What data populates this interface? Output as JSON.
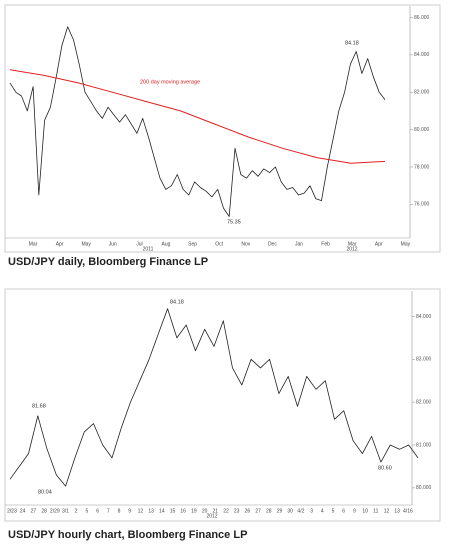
{
  "charts": [
    {
      "type": "line",
      "caption": "USD/JPY daily, Bloomberg Finance LP",
      "series": [
        {
          "name": "USD/JPY",
          "color": "#222222",
          "values": [
            82.5,
            82.0,
            81.8,
            81.0,
            82.3,
            76.5,
            80.5,
            81.2,
            82.8,
            84.5,
            85.5,
            84.8,
            83.5,
            82.0,
            81.5,
            81.0,
            80.6,
            81.2,
            80.8,
            80.4,
            80.8,
            80.3,
            79.8,
            80.6,
            79.6,
            78.5,
            77.4,
            76.8,
            77.0,
            77.6,
            76.8,
            76.5,
            77.2,
            76.9,
            76.7,
            76.4,
            76.8,
            75.8,
            75.35,
            79.0,
            77.6,
            77.4,
            77.8,
            77.5,
            77.9,
            77.7,
            78.0,
            77.2,
            76.8,
            76.9,
            76.5,
            76.6,
            77.0,
            76.3,
            76.2,
            78.0,
            79.5,
            81.0,
            82.0,
            83.5,
            84.18,
            83.0,
            83.8,
            82.8,
            82.0,
            81.6
          ]
        },
        {
          "name": "200 day moving average",
          "color": "#e02020",
          "values": [
            83.2,
            82.9,
            82.5,
            82.0,
            81.5,
            81.0,
            80.3,
            79.6,
            79.0,
            78.5,
            78.2,
            78.3
          ]
        }
      ],
      "x_labels": [
        "Mar",
        "Apr",
        "May",
        "Jun",
        "Jul",
        "Aug",
        "Sep",
        "Oct",
        "Nov",
        "Dec",
        "Jan",
        "Feb",
        "Mar",
        "Apr",
        "May"
      ],
      "year_labels": [
        "2011",
        "2012"
      ],
      "annotations": [
        "84.18",
        "75.35"
      ],
      "ylim": [
        74.2,
        86.4
      ],
      "yticks": [
        {
          "value": 76,
          "label": "76.000"
        },
        {
          "value": 78,
          "label": "78.000"
        },
        {
          "value": 80,
          "label": "80.000"
        },
        {
          "value": 82,
          "label": "82.000"
        },
        {
          "value": 84,
          "label": "84.000"
        },
        {
          "value": 86,
          "label": "86.000"
        }
      ]
    },
    {
      "type": "line",
      "caption": "USD/JPY hourly chart, Bloomberg Finance LP",
      "series": [
        {
          "name": "USD/JPY",
          "color": "#222222",
          "values": [
            80.2,
            80.5,
            80.8,
            81.68,
            80.9,
            80.3,
            80.04,
            80.7,
            81.3,
            81.5,
            81.0,
            80.7,
            81.4,
            82.0,
            82.5,
            83.0,
            83.6,
            84.18,
            83.5,
            83.8,
            83.2,
            83.7,
            83.3,
            83.9,
            82.8,
            82.4,
            83.0,
            82.8,
            83.0,
            82.2,
            82.6,
            81.9,
            82.6,
            82.3,
            82.5,
            81.6,
            81.8,
            81.1,
            80.8,
            81.2,
            80.6,
            81.0,
            80.9,
            81.0,
            80.7
          ]
        }
      ],
      "x_labels": [
        "2/23",
        "24",
        "27",
        "28",
        "2/29",
        "3/1",
        "2",
        "5",
        "6",
        "7",
        "8",
        "9",
        "12",
        "13",
        "14",
        "15",
        "16",
        "19",
        "20",
        "21",
        "22",
        "23",
        "26",
        "27",
        "28",
        "29",
        "30",
        "4/2",
        "3",
        "4",
        "5",
        "6",
        "9",
        "10",
        "11",
        "12",
        "13",
        "4/16"
      ],
      "year_labels": [
        "2012"
      ],
      "annotations": [
        "84.18",
        "81.68",
        "80.04",
        "80.60"
      ],
      "ylim": [
        79.6,
        84.5
      ],
      "yticks": [
        {
          "value": 80,
          "label": "80.000"
        },
        {
          "value": 81,
          "label": "81.000"
        },
        {
          "value": 82,
          "label": "82.000"
        },
        {
          "value": 83,
          "label": "83.000"
        },
        {
          "value": 84,
          "label": "84.000"
        }
      ]
    }
  ]
}
